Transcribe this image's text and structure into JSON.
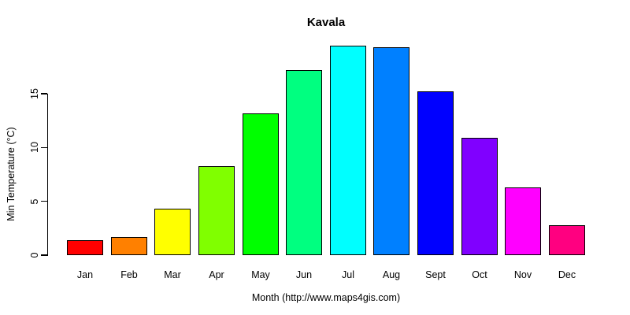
{
  "chart_data": {
    "type": "bar",
    "title": "Kavala",
    "xlabel": "Month (http://www.maps4gis.com)",
    "ylabel": "Min Temperature (°C)",
    "categories": [
      "Jan",
      "Feb",
      "Mar",
      "Apr",
      "May",
      "Jun",
      "Jul",
      "Aug",
      "Sept",
      "Oct",
      "Nov",
      "Dec"
    ],
    "values": [
      1.4,
      1.7,
      4.3,
      8.3,
      13.2,
      17.2,
      19.5,
      19.3,
      15.2,
      10.9,
      6.3,
      2.8
    ],
    "bar_colors": [
      "#FF0000",
      "#FF8000",
      "#FFFF00",
      "#80FF00",
      "#00FF00",
      "#00FF80",
      "#00FFFF",
      "#0080FF",
      "#0000FF",
      "#8000FF",
      "#FF00FF",
      "#FF0080"
    ],
    "bar_border_color": "#000000",
    "axis_color": "#000000",
    "text_color": "#000000",
    "background_color": "#FFFFFF",
    "yticks": [
      0,
      5,
      10,
      15
    ],
    "ylim": [
      0,
      20
    ],
    "grid": false,
    "legend": "none"
  }
}
